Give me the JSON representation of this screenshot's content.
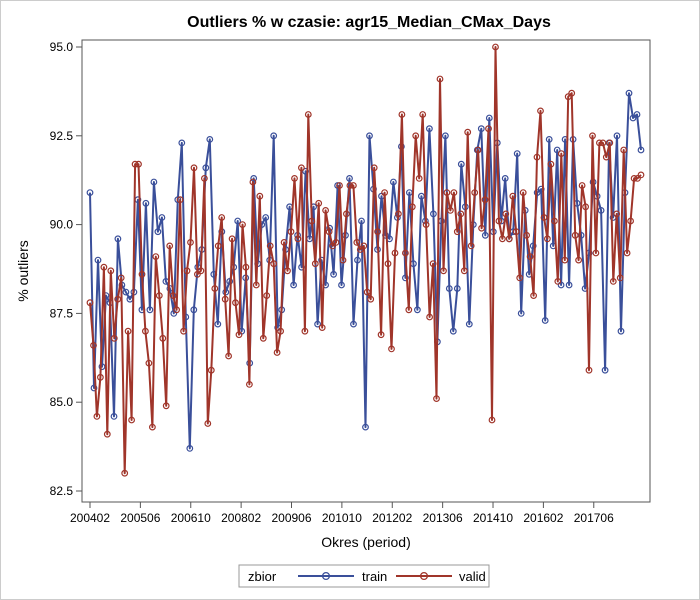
{
  "chart_data": {
    "type": "line",
    "title": "Outliers % w czasie: agr15_Median_CMax_Days",
    "xlabel": "Okres (period)",
    "ylabel": "% outliers",
    "ylim": [
      82.5,
      95.0
    ],
    "yticks": [
      "82.5",
      "85.0",
      "87.5",
      "90.0",
      "92.5",
      "95.0"
    ],
    "xtick_labels": [
      "200402",
      "200506",
      "200610",
      "200802",
      "200906",
      "201010",
      "201202",
      "201306",
      "201410",
      "201602",
      "201706"
    ],
    "x_start": "200402",
    "x_end": "201809",
    "grid": false,
    "legend": {
      "title": "zbior",
      "position": "bottom"
    },
    "series": [
      {
        "name": "train",
        "color": "#3a4f9a",
        "values": [
          90.9,
          85.4,
          89.0,
          86.0,
          88.0,
          87.8,
          84.6,
          89.6,
          88.3,
          88.1,
          87.9,
          88.1,
          90.7,
          87.6,
          90.6,
          87.6,
          91.2,
          89.8,
          90.2,
          88.4,
          88.2,
          87.5,
          90.7,
          92.3,
          87.4,
          83.7,
          87.6,
          88.8,
          89.3,
          91.6,
          92.4,
          88.6,
          87.2,
          89.8,
          88.1,
          88.4,
          88.8,
          90.1,
          87.0,
          88.5,
          86.1,
          91.3,
          88.9,
          90.0,
          90.2,
          89.0,
          92.5,
          87.1,
          87.6,
          89.3,
          90.5,
          88.3,
          89.7,
          88.8,
          91.5,
          89.6,
          90.5,
          87.2,
          89.0,
          88.3,
          89.9,
          88.6,
          91.1,
          88.3,
          89.7,
          91.3,
          87.2,
          89.0,
          90.1,
          84.3,
          92.5,
          91.0,
          89.3,
          90.8,
          89.7,
          89.6,
          91.2,
          90.2,
          92.2,
          88.5,
          90.9,
          88.9,
          87.6,
          90.8,
          90.1,
          92.7,
          90.3,
          86.7,
          90.1,
          92.5,
          88.2,
          87.0,
          88.2,
          91.7,
          90.5,
          87.2,
          90.0,
          92.1,
          92.7,
          89.7,
          93.0,
          89.8,
          92.3,
          90.1,
          91.3,
          89.6,
          89.8,
          92.0,
          87.5,
          90.4,
          88.6,
          89.4,
          90.9,
          91.0,
          87.3,
          92.4,
          89.4,
          92.1,
          88.3,
          92.4,
          88.3,
          92.4,
          90.6,
          89.7,
          88.2,
          89.2,
          91.2,
          90.8,
          90.4,
          85.9,
          92.3,
          90.2,
          92.5,
          87.0,
          90.9,
          93.7,
          93.0,
          93.1,
          92.1
        ]
      },
      {
        "name": "valid",
        "color": "#a0352a",
        "values": [
          87.8,
          86.6,
          84.6,
          85.7,
          88.8,
          84.1,
          88.7,
          86.8,
          87.9,
          88.5,
          83.0,
          87.0,
          84.5,
          91.7,
          91.7,
          88.6,
          87.0,
          86.1,
          84.3,
          89.1,
          88.0,
          86.8,
          84.9,
          89.4,
          88.0,
          87.6,
          90.7,
          87.0,
          88.7,
          89.5,
          91.6,
          88.6,
          88.7,
          91.3,
          84.4,
          85.9,
          88.2,
          89.4,
          90.2,
          87.9,
          86.3,
          89.6,
          87.8,
          86.9,
          90.0,
          88.8,
          85.5,
          91.2,
          88.3,
          90.8,
          86.8,
          88.0,
          89.4,
          88.9,
          86.4,
          87.0,
          89.5,
          88.7,
          89.8,
          91.3,
          89.6,
          91.6,
          87.0,
          93.1,
          90.1,
          88.9,
          90.6,
          87.1,
          90.4,
          89.8,
          89.4,
          89.5,
          91.1,
          89.0,
          90.3,
          91.1,
          91.1,
          89.5,
          89.3,
          89.4,
          88.1,
          87.9,
          91.6,
          89.8,
          86.9,
          90.9,
          88.9,
          86.5,
          89.2,
          90.3,
          93.1,
          89.2,
          87.6,
          90.5,
          92.5,
          91.3,
          93.1,
          90.0,
          87.4,
          88.9,
          85.1,
          94.1,
          88.7,
          90.9,
          90.4,
          90.9,
          89.8,
          90.3,
          88.7,
          92.6,
          89.4,
          90.9,
          92.1,
          89.9,
          90.7,
          92.7,
          84.5,
          95.0,
          90.1,
          89.6,
          90.3,
          89.6,
          90.8,
          89.8,
          88.5,
          90.9,
          89.7,
          89.1,
          88.0,
          91.9,
          93.2,
          90.2,
          89.6,
          91.7,
          90.1,
          88.4,
          92.0,
          89.0,
          93.6,
          93.7,
          89.7,
          89.0,
          91.1,
          90.5,
          85.9,
          92.5,
          89.2,
          92.3,
          92.3,
          91.9,
          92.3,
          88.4,
          90.3,
          88.5,
          92.1,
          89.2,
          90.1,
          91.3,
          91.3,
          91.4
        ]
      }
    ]
  }
}
